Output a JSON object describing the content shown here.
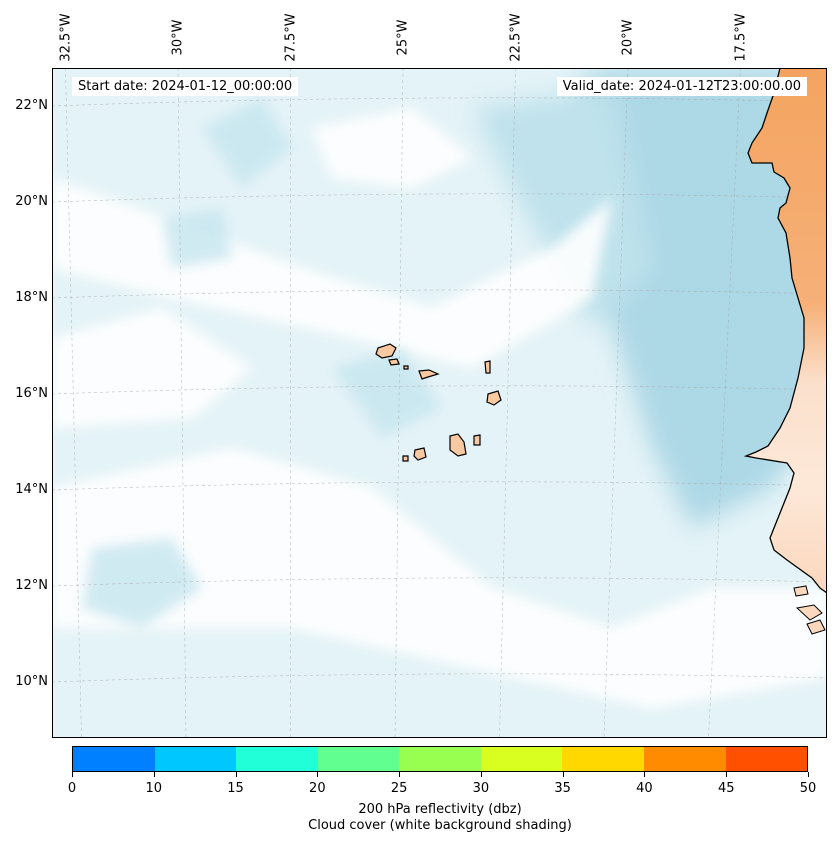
{
  "start_date": "Start date: 2024-01-12_00:00:00",
  "valid_date": "Valid_date: 2024-01-12T23:00:00.00",
  "lon_labels": [
    "32.5°W",
    "30°W",
    "27.5°W",
    "25°W",
    "22.5°W",
    "20°W",
    "17.5°W"
  ],
  "lon_values": [
    -32.5,
    -30,
    -27.5,
    -25,
    -22.5,
    -20,
    -17.5
  ],
  "lat_labels": [
    "22°N",
    "20°N",
    "18°N",
    "16°N",
    "14°N",
    "12°N",
    "10°N"
  ],
  "lat_values": [
    22,
    20,
    18,
    16,
    14,
    12,
    10
  ],
  "colorbar": {
    "ticks": [
      "0",
      "10",
      "15",
      "20",
      "25",
      "30",
      "35",
      "40",
      "45",
      "50"
    ],
    "colors": [
      "#0080ff",
      "#00c8ff",
      "#20ffd8",
      "#60ff90",
      "#98ff50",
      "#d8ff20",
      "#ffd800",
      "#ff8c00",
      "#ff5000"
    ],
    "label_line1": "200 hPa reflectivity (dbz)",
    "label_line2": "Cloud cover (white background shading)"
  },
  "colors": {
    "ocean_cloudfree": "#b0dce8",
    "cloud": "#ffffff",
    "land_africa": "#f4a460",
    "islands": "#f8c8a0"
  }
}
